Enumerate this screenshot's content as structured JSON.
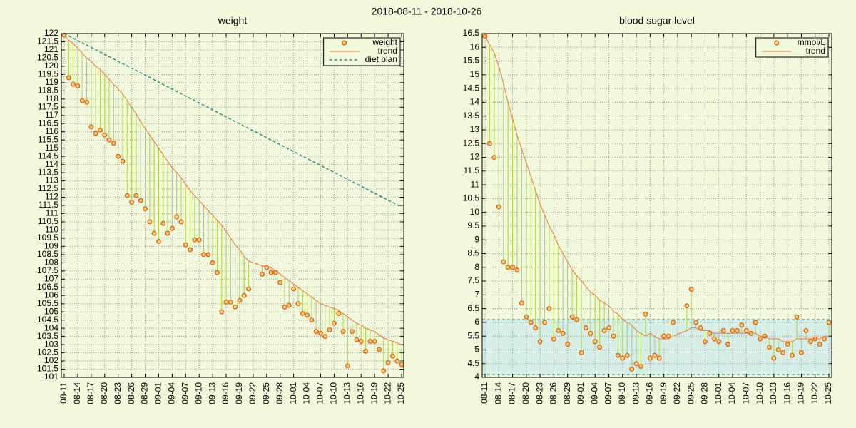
{
  "title": "2018-08-11 - 2018-10-26",
  "chart_data": [
    {
      "type": "line",
      "title": "weight",
      "legend": "top-right",
      "grid": true,
      "impulses": true,
      "x": [
        "08-11",
        "08-12",
        "08-13",
        "08-14",
        "08-15",
        "08-16",
        "08-17",
        "08-18",
        "08-19",
        "08-20",
        "08-21",
        "08-22",
        "08-23",
        "08-24",
        "08-25",
        "08-26",
        "08-27",
        "08-28",
        "08-29",
        "08-30",
        "08-31",
        "09-01",
        "09-02",
        "09-03",
        "09-04",
        "09-05",
        "09-06",
        "09-07",
        "09-08",
        "09-09",
        "09-10",
        "09-11",
        "09-12",
        "09-13",
        "09-14",
        "09-15",
        "09-16",
        "09-17",
        "09-18",
        "09-19",
        "09-20",
        "09-21",
        "09-24",
        "09-25",
        "09-26",
        "09-27",
        "09-28",
        "09-29",
        "09-30",
        "10-01",
        "10-02",
        "10-03",
        "10-04",
        "10-05",
        "10-06",
        "10-07",
        "10-08",
        "10-09",
        "10-10",
        "10-11",
        "10-12",
        "10-13",
        "10-14",
        "10-15",
        "10-16",
        "10-17",
        "10-18",
        "10-19",
        "10-20",
        "10-21",
        "10-22",
        "10-23",
        "10-24",
        "10-25"
      ],
      "series": [
        {
          "name": "weight",
          "style": "points",
          "color": "#e06010",
          "values": [
            121.9,
            119.3,
            118.9,
            118.8,
            117.9,
            117.8,
            116.3,
            115.9,
            116.1,
            115.8,
            115.5,
            115.3,
            114.5,
            114.2,
            112.1,
            111.7,
            112.1,
            111.8,
            111.3,
            110.5,
            109.8,
            109.3,
            110.4,
            109.8,
            110.1,
            110.8,
            110.5,
            109.1,
            108.8,
            109.4,
            109.4,
            108.5,
            108.5,
            108.0,
            107.4,
            105.0,
            105.6,
            105.6,
            105.3,
            105.7,
            106.0,
            106.4,
            107.3,
            107.7,
            107.4,
            107.4,
            106.8,
            105.3,
            105.4,
            106.4,
            105.5,
            104.9,
            104.8,
            104.5,
            103.8,
            103.7,
            103.5,
            103.9,
            104.3,
            104.9,
            103.8,
            101.7,
            103.8,
            103.3,
            103.2,
            102.6,
            103.2,
            103.2,
            102.7,
            101.4,
            101.9,
            102.3,
            102.0,
            101.8
          ]
        },
        {
          "name": "trend",
          "style": "line",
          "color": "#f07830",
          "values": [
            121.9,
            121.6,
            121.4,
            121.1,
            120.8,
            120.5,
            120.3,
            120.0,
            119.8,
            119.5,
            119.2,
            118.9,
            118.6,
            118.3,
            117.9,
            117.5,
            117.1,
            116.6,
            116.2,
            115.8,
            115.4,
            115.0,
            114.6,
            114.2,
            113.8,
            113.5,
            113.2,
            112.8,
            112.4,
            112.1,
            111.8,
            111.5,
            111.2,
            110.9,
            110.6,
            110.3,
            109.9,
            109.5,
            109.1,
            108.8,
            108.4,
            108.1,
            107.8,
            107.8,
            107.7,
            107.5,
            107.3,
            107.1,
            106.9,
            106.7,
            106.5,
            106.3,
            106.1,
            105.9,
            105.7,
            105.5,
            105.4,
            105.3,
            105.2,
            105.1,
            104.9,
            104.7,
            104.5,
            104.3,
            104.2,
            104.0,
            103.9,
            103.8,
            103.6,
            103.4,
            103.3,
            103.2,
            103.1,
            103.0
          ]
        },
        {
          "name": "diet plan",
          "style": "dashed",
          "color": "#2e8b8b",
          "x": [
            "08-11",
            "10-25"
          ],
          "values": [
            122,
            111.4
          ]
        }
      ],
      "xlim": [
        "08-11",
        "10-25"
      ],
      "xticks": [
        "08-11",
        "08-14",
        "08-17",
        "08-20",
        "08-23",
        "08-26",
        "08-29",
        "09-01",
        "09-04",
        "09-07",
        "09-10",
        "09-13",
        "09-16",
        "09-19",
        "09-22",
        "09-25",
        "09-28",
        "10-01",
        "10-04",
        "10-07",
        "10-10",
        "10-13",
        "10-16",
        "10-19",
        "10-22",
        "10-25"
      ],
      "ylim": [
        101,
        122
      ],
      "yticks": [
        101,
        101.5,
        102,
        102.5,
        103,
        103.5,
        104,
        104.5,
        105,
        105.5,
        106,
        106.5,
        107,
        107.5,
        108,
        108.5,
        109,
        109.5,
        110,
        110.5,
        111,
        111.5,
        112,
        112.5,
        113,
        113.5,
        114,
        114.5,
        115,
        115.5,
        116,
        116.5,
        117,
        117.5,
        118,
        118.5,
        119,
        119.5,
        120,
        120.5,
        121,
        121.5,
        122
      ]
    },
    {
      "type": "line",
      "title": "blood sugar level",
      "legend": "top-right",
      "grid": true,
      "impulses": true,
      "target_range": [
        4.1,
        6.1
      ],
      "target_color": "#d6eee6",
      "x": [
        "08-11",
        "08-12",
        "08-13",
        "08-14",
        "08-15",
        "08-16",
        "08-17",
        "08-18",
        "08-19",
        "08-20",
        "08-21",
        "08-22",
        "08-23",
        "08-24",
        "08-25",
        "08-26",
        "08-27",
        "08-28",
        "08-29",
        "08-30",
        "08-31",
        "09-01",
        "09-02",
        "09-03",
        "09-04",
        "09-05",
        "09-06",
        "09-07",
        "09-08",
        "09-09",
        "09-10",
        "09-11",
        "09-12",
        "09-13",
        "09-14",
        "09-15",
        "09-16",
        "09-17",
        "09-18",
        "09-19",
        "09-20",
        "09-21",
        "09-24",
        "09-25",
        "09-26",
        "09-27",
        "09-28",
        "09-29",
        "09-30",
        "10-01",
        "10-02",
        "10-03",
        "10-04",
        "10-05",
        "10-06",
        "10-07",
        "10-08",
        "10-09",
        "10-10",
        "10-11",
        "10-12",
        "10-13",
        "10-14",
        "10-15",
        "10-16",
        "10-17",
        "10-18",
        "10-19",
        "10-20",
        "10-21",
        "10-22",
        "10-23",
        "10-24",
        "10-25"
      ],
      "series": [
        {
          "name": "mmol/L",
          "style": "points",
          "color": "#e06010",
          "values": [
            16.4,
            12.5,
            12.0,
            10.2,
            8.2,
            8.0,
            8.0,
            7.9,
            6.7,
            6.2,
            6.0,
            5.8,
            5.3,
            6.0,
            6.5,
            5.4,
            5.7,
            5.6,
            5.2,
            6.2,
            6.1,
            4.9,
            5.8,
            5.6,
            5.3,
            5.1,
            5.7,
            5.8,
            5.5,
            4.8,
            4.7,
            4.8,
            4.3,
            4.5,
            4.4,
            6.3,
            4.7,
            4.8,
            4.7,
            5.5,
            5.5,
            6.0,
            6.6,
            7.2,
            6.0,
            5.8,
            5.3,
            5.6,
            5.4,
            5.3,
            5.7,
            5.2,
            5.7,
            5.7,
            5.9,
            5.7,
            5.6,
            6.0,
            5.4,
            5.5,
            5.1,
            4.7,
            5.0,
            4.9,
            5.2,
            4.8,
            6.2,
            4.9,
            5.7,
            5.3,
            5.4,
            5.2,
            5.4,
            6.0
          ]
        },
        {
          "name": "trend",
          "style": "line",
          "color": "#f07830",
          "values": [
            16.4,
            16.1,
            15.8,
            15.3,
            14.7,
            14.0,
            13.4,
            12.8,
            12.3,
            11.8,
            11.3,
            10.8,
            10.3,
            9.9,
            9.5,
            9.2,
            8.8,
            8.5,
            8.2,
            7.9,
            7.7,
            7.5,
            7.3,
            7.1,
            7.0,
            6.8,
            6.7,
            6.6,
            6.4,
            6.3,
            6.1,
            6.0,
            5.9,
            5.7,
            5.6,
            5.5,
            5.6,
            5.5,
            5.4,
            5.4,
            5.4,
            5.5,
            5.7,
            5.8,
            5.8,
            5.7,
            5.7,
            5.7,
            5.6,
            5.6,
            5.6,
            5.6,
            5.6,
            5.6,
            5.6,
            5.6,
            5.6,
            5.6,
            5.5,
            5.5,
            5.4,
            5.4,
            5.4,
            5.3,
            5.3,
            5.3,
            5.4,
            5.4,
            5.4,
            5.4,
            5.4,
            5.4,
            5.5,
            5.5
          ]
        }
      ],
      "xlim": [
        "08-11",
        "10-25"
      ],
      "xticks": [
        "08-11",
        "08-14",
        "08-17",
        "08-20",
        "08-23",
        "08-26",
        "08-29",
        "09-01",
        "09-04",
        "09-07",
        "09-10",
        "09-13",
        "09-16",
        "09-19",
        "09-22",
        "09-25",
        "09-28",
        "10-01",
        "10-04",
        "10-07",
        "10-10",
        "10-13",
        "10-16",
        "10-19",
        "10-22",
        "10-25"
      ],
      "ylim": [
        4,
        16.5
      ],
      "yticks": [
        4,
        4.5,
        5,
        5.5,
        6,
        6.5,
        7,
        7.5,
        8,
        8.5,
        9,
        9.5,
        10,
        10.5,
        11,
        11.5,
        12,
        12.5,
        13,
        13.5,
        14,
        14.5,
        15,
        15.5,
        16,
        16.5
      ]
    }
  ]
}
